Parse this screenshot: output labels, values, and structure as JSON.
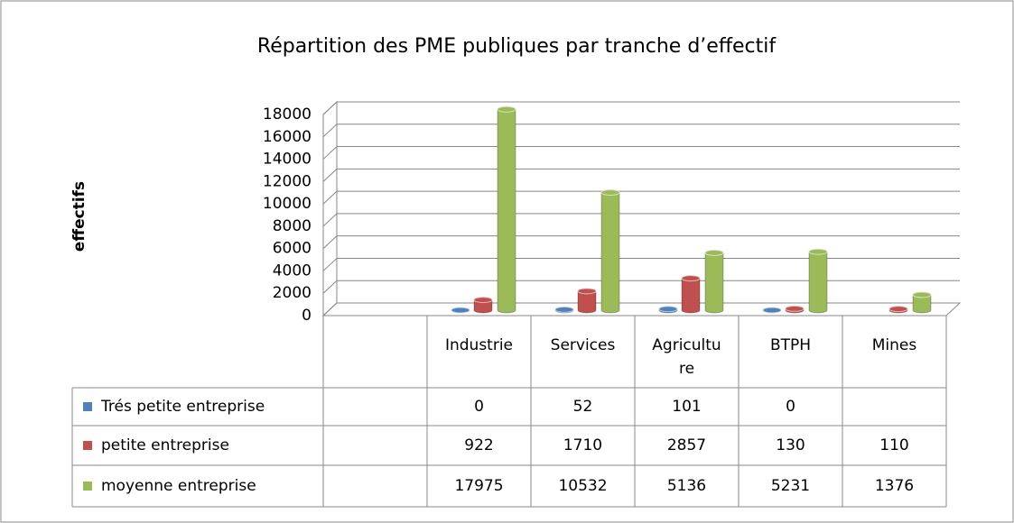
{
  "chart_data": {
    "type": "bar3d",
    "title": "Répartition des PME publiques par tranche d’effectif",
    "ylabel": "effectifs",
    "categories": [
      null,
      "Industrie",
      "Services",
      "Agriculture",
      "BTPH",
      "Mines"
    ],
    "series": [
      {
        "name": "Trés petite entreprise",
        "color": "#4f81bd",
        "values": [
          null,
          0,
          52,
          101,
          0,
          null
        ]
      },
      {
        "name": "petite entreprise",
        "color": "#c0504d",
        "values": [
          null,
          922,
          1710,
          2857,
          130,
          110
        ]
      },
      {
        "name": "moyenne entreprise",
        "color": "#9bbb59",
        "values": [
          null,
          17975,
          10532,
          5136,
          5231,
          1376
        ]
      }
    ],
    "ylim": [
      0,
      18000
    ],
    "yticks": [
      0,
      2000,
      4000,
      6000,
      8000,
      10000,
      12000,
      14000,
      16000,
      18000
    ],
    "grid": true,
    "data_table": true
  }
}
